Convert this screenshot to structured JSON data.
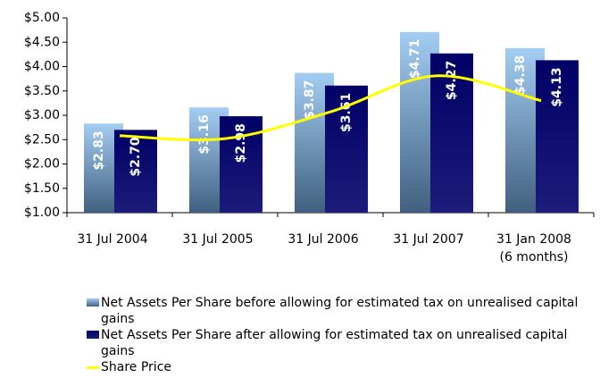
{
  "chart_data": {
    "type": "bar",
    "categories": [
      "31 Jul 2004",
      "31 Jul 2005",
      "31 Jul 2006",
      "31 Jul 2007",
      "31 Jan 2008\n(6 months)"
    ],
    "series": [
      {
        "name": "Net Assets Per Share before allowing for estimated tax on unrealised capital gains",
        "color": "#a3cdf2",
        "type": "bar",
        "values": [
          2.83,
          3.16,
          3.87,
          4.71,
          4.38
        ],
        "value_labels": [
          "$2.83",
          "$3.16",
          "$3.87",
          "$4.71",
          "$4.38"
        ]
      },
      {
        "name": "Net Assets Per Share after allowing for estimated tax on unrealised capital gains",
        "color": "#000066",
        "type": "bar",
        "values": [
          2.7,
          2.98,
          3.61,
          4.27,
          4.13
        ],
        "value_labels": [
          "$2.70",
          "$2.98",
          "$3.61",
          "$4.27",
          "$4.13"
        ]
      },
      {
        "name": "Share Price",
        "color": "#ffff00",
        "type": "line",
        "values": [
          2.58,
          2.52,
          3.07,
          3.81,
          3.3
        ]
      }
    ],
    "ylim": [
      1,
      5
    ],
    "yticks": [
      {
        "value": 1,
        "label": "$1.00"
      },
      {
        "value": 1.5,
        "label": "$1.50"
      },
      {
        "value": 2,
        "label": "$2.00"
      },
      {
        "value": 2.5,
        "label": "$2.50"
      },
      {
        "value": 3,
        "label": "$3.00"
      },
      {
        "value": 3.5,
        "label": "$3.50"
      },
      {
        "value": 4,
        "label": "$4.00"
      },
      {
        "value": 4.5,
        "label": "$4.50"
      },
      {
        "value": 5,
        "label": "$5.00"
      }
    ],
    "grid": false,
    "legend": "bottom"
  }
}
